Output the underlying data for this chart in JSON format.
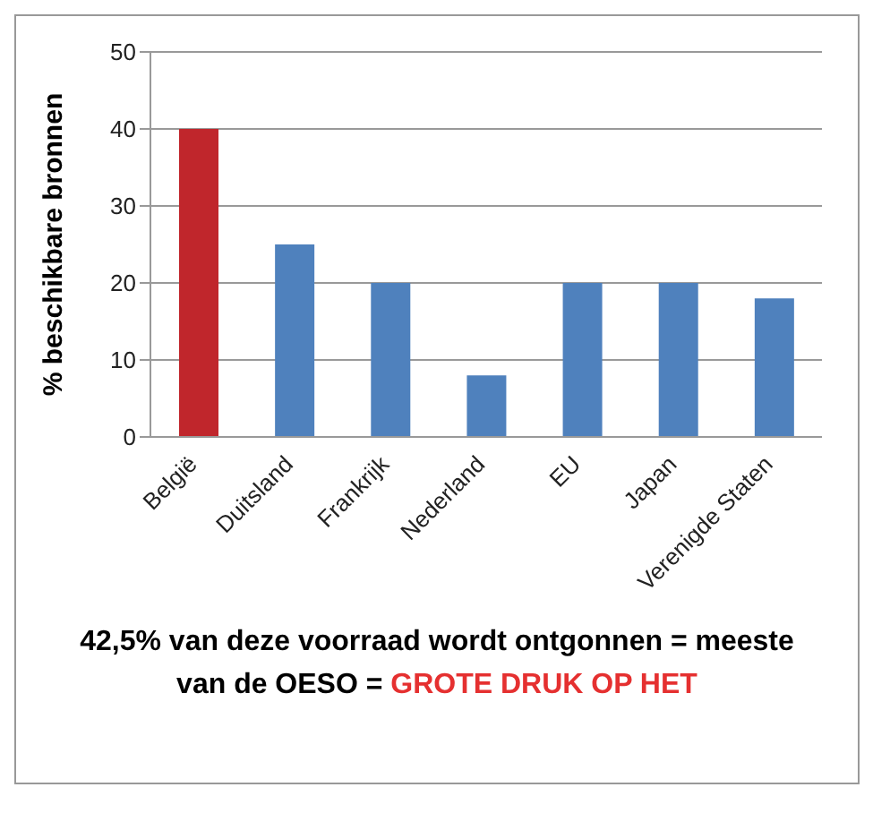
{
  "chart_data": {
    "type": "bar",
    "ylabel": "% beschikbare bronnen",
    "categories": [
      "België",
      "Duitsland",
      "Frankrijk",
      "Nederland",
      "EU",
      "Japan",
      "Verenigde Staten"
    ],
    "values": [
      40,
      25,
      20,
      8,
      20,
      20,
      18
    ],
    "colors": [
      "#c0262c",
      "#4f81bd",
      "#4f81bd",
      "#4f81bd",
      "#4f81bd",
      "#4f81bd",
      "#4f81bd"
    ],
    "ylim": [
      0,
      50
    ],
    "yticks": [
      0,
      10,
      20,
      30,
      40,
      50
    ],
    "grid": "y",
    "annotations": [
      "42,5% van deze voorraad wordt ontgonnen = meeste van de OESO =",
      "GROTE DRUK OP HET"
    ]
  }
}
